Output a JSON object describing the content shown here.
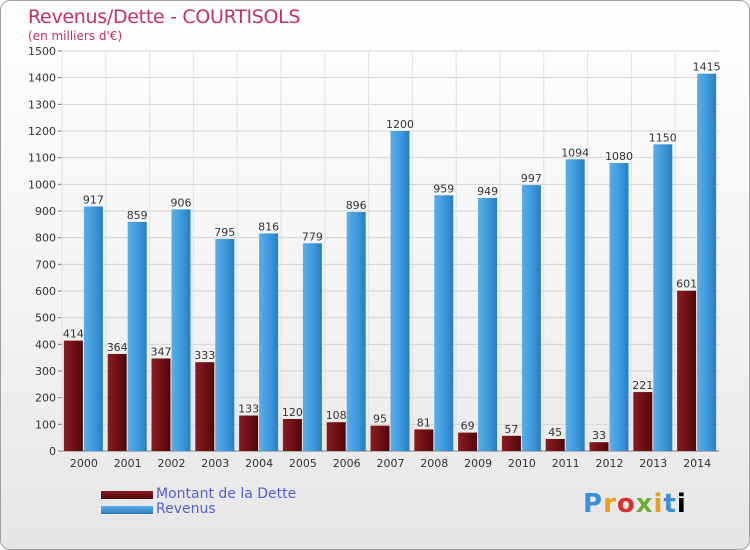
{
  "title": "Revenus/Dette - COURTISOLS",
  "unit_label": "(en milliers d'€)",
  "legend": {
    "items": [
      {
        "label": "Montant de la Dette",
        "color": "#6e0f12"
      },
      {
        "label": "Revenus",
        "color": "#3a96dc"
      }
    ]
  },
  "logo_text": "Proxiti",
  "chart_data": {
    "type": "bar",
    "categories": [
      "2000",
      "2001",
      "2002",
      "2003",
      "2004",
      "2005",
      "2006",
      "2007",
      "2008",
      "2009",
      "2010",
      "2011",
      "2012",
      "2013",
      "2014"
    ],
    "series": [
      {
        "name": "Montant de la Dette",
        "values": [
          414,
          364,
          347,
          333,
          133,
          120,
          108,
          95,
          81,
          69,
          57,
          45,
          33,
          221,
          601
        ],
        "color": "#7a1518"
      },
      {
        "name": "Revenus",
        "values": [
          917,
          859,
          906,
          795,
          816,
          779,
          896,
          1200,
          959,
          949,
          997,
          1094,
          1080,
          1150,
          1415
        ],
        "color": "#3a96dc"
      }
    ],
    "ylim": [
      0,
      1500
    ],
    "yticks": [
      0,
      100,
      200,
      300,
      400,
      500,
      600,
      700,
      800,
      900,
      1000,
      1100,
      1200,
      1300,
      1400,
      1500
    ],
    "grid": true
  }
}
